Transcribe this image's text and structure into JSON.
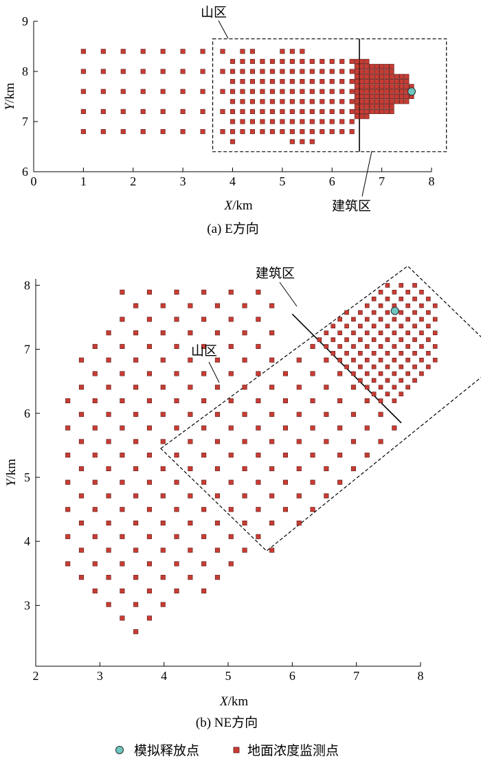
{
  "legend": {
    "release_label": "模拟释放点",
    "monitor_label": "地面浓度监测点",
    "release_color": "#6ec6c0",
    "monitor_color": "#c83c34"
  },
  "chart_data": [
    {
      "type": "scatter",
      "caption": "(a) E方向",
      "xlabel_var": "X",
      "xlabel_unit": "/km",
      "ylabel_var": "Y",
      "ylabel_unit": "/km",
      "xlim": [
        0,
        8
      ],
      "ylim": [
        6,
        9
      ],
      "xticks": [
        "0",
        "1",
        "2",
        "3",
        "4",
        "5",
        "6",
        "7",
        "8"
      ],
      "yticks": [
        "6",
        "7",
        "8",
        "9"
      ],
      "grid": false,
      "release_point": [
        7.6,
        7.6
      ],
      "regions": [
        {
          "name": "山区",
          "polygon": [
            [
              3.6,
              8.65
            ],
            [
              8.45,
              8.65
            ],
            [
              8.45,
              6.4
            ],
            [
              3.6,
              6.4
            ]
          ]
        },
        {
          "name": "建筑区",
          "line": [
            [
              6.55,
              8.65
            ],
            [
              6.55,
              6.4
            ]
          ]
        }
      ],
      "monitor_grids": [
        {
          "x_from": 1.0,
          "x_to": 3.4,
          "x_step": 0.4,
          "ys": [
            6.8,
            7.2,
            7.6,
            8.0,
            8.4
          ]
        },
        {
          "x_from": 3.8,
          "x_to": 3.8,
          "x_step": 0.4,
          "ys": [
            6.8,
            7.2,
            7.6,
            8.0,
            8.4
          ]
        },
        {
          "x_from": 4.2,
          "x_to": 4.2,
          "x_step": 0.4,
          "ys": [
            8.4
          ]
        },
        {
          "x_from": 4.4,
          "x_to": 4.4,
          "x_step": 0.4,
          "ys": [
            8.4
          ]
        },
        {
          "x_from": 4.0,
          "x_to": 6.4,
          "x_step": 0.2,
          "ys": [
            6.8,
            7.0,
            7.2,
            7.4,
            7.6,
            7.8,
            8.0,
            8.2
          ]
        },
        {
          "x_from": 5.0,
          "x_to": 5.4,
          "x_step": 0.2,
          "ys": [
            8.4
          ]
        },
        {
          "x_from": 5.2,
          "x_to": 5.6,
          "x_step": 0.2,
          "ys": [
            6.6
          ]
        },
        {
          "x_from": 4.0,
          "x_to": 4.0,
          "x_step": 0.2,
          "ys": [
            6.6
          ]
        },
        {
          "x_from": 6.5,
          "x_to": 6.7,
          "x_step": 0.1,
          "ys": [
            7.1,
            7.2,
            7.3,
            7.4,
            7.5,
            7.6,
            7.7,
            7.8,
            7.9,
            8.0,
            8.1,
            8.2
          ]
        },
        {
          "x_from": 6.8,
          "x_to": 7.2,
          "x_step": 0.1,
          "ys": [
            7.2,
            7.3,
            7.4,
            7.5,
            7.6,
            7.7,
            7.8,
            7.9,
            8.0,
            8.1
          ]
        },
        {
          "x_from": 7.3,
          "x_to": 7.5,
          "x_step": 0.1,
          "ys": [
            7.4,
            7.5,
            7.6,
            7.7,
            7.8,
            7.9
          ]
        },
        {
          "x_from": 7.6,
          "x_to": 7.6,
          "x_step": 0.1,
          "ys": [
            7.5,
            7.7
          ]
        }
      ]
    },
    {
      "type": "scatter",
      "caption": "(b) NE方向",
      "xlabel_var": "X",
      "xlabel_unit": "/km",
      "ylabel_var": "Y",
      "ylabel_unit": "/km",
      "xlim": [
        2,
        8
      ],
      "ylim": [
        2.05,
        8.1
      ],
      "xticks": [
        "2",
        "3",
        "4",
        "5",
        "6",
        "7",
        "8"
      ],
      "yticks": [
        "3",
        "4",
        "5",
        "6",
        "7",
        "8"
      ],
      "grid": false,
      "release_point": [
        7.6,
        7.6
      ],
      "regions": [
        {
          "name": "山区",
          "polygon": [
            [
              3.95,
              5.45
            ],
            [
              7.8,
              8.3
            ],
            [
              9.3,
              6.85
            ],
            [
              5.6,
              3.85
            ]
          ]
        },
        {
          "name": "建筑区",
          "line": [
            [
              6.0,
              7.55
            ],
            [
              7.7,
              5.85
            ]
          ]
        }
      ],
      "monitor_rot_grids": [
        {
          "origin": [
            2.5,
            3.65
          ],
          "u_from": 0,
          "u_to": 9,
          "v_from": -4,
          "v_to": 6,
          "u_step": 0.3,
          "v_step": 0.3,
          "u_min": 0,
          "clip": "outside_mountain"
        },
        {
          "origin": [
            2.5,
            3.65
          ],
          "u_from": 0,
          "u_to": 40,
          "v_from": -6,
          "v_to": 6,
          "u_step": 0.3,
          "v_step": 0.3,
          "clip": "in_mountain_sparse"
        },
        {
          "origin": [
            2.5,
            3.65
          ],
          "u_from": 0,
          "u_to": 80,
          "v_from": -10,
          "v_to": 10,
          "u_step": 0.15,
          "v_step": 0.15,
          "clip": "in_building"
        }
      ]
    }
  ]
}
